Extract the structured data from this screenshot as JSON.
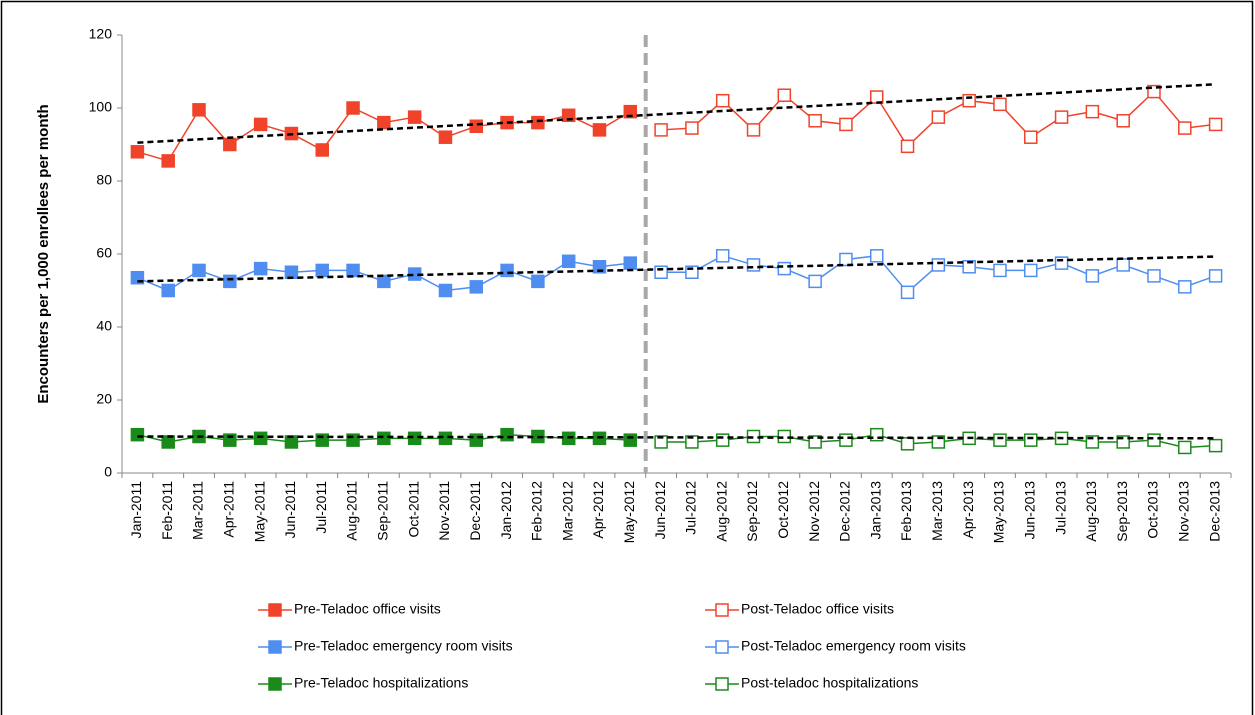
{
  "chart_data": {
    "type": "line",
    "y_label": "Encounters per 1,000 enrollees per month",
    "categories": [
      "Jan-2011",
      "Feb-2011",
      "Mar-2011",
      "Apr-2011",
      "May-2011",
      "Jun-2011",
      "Jul-2011",
      "Aug-2011",
      "Sep-2011",
      "Oct-2011",
      "Nov-2011",
      "Dec-2011",
      "Jan-2012",
      "Feb-2012",
      "Mar-2012",
      "Apr-2012",
      "May-2012",
      "Jun-2012",
      "Jul-2012",
      "Aug-2012",
      "Sep-2012",
      "Oct-2012",
      "Nov-2012",
      "Dec-2012",
      "Jan-2013",
      "Feb-2013",
      "Mar-2013",
      "Apr-2013",
      "May-2013",
      "Jun-2013",
      "Jul-2013",
      "Aug-2013",
      "Sep-2013",
      "Oct-2013",
      "Nov-2013",
      "Dec-2013"
    ],
    "series": [
      {
        "name": "Pre-Teladoc office visits",
        "color": "#f0432a",
        "marker": "filled",
        "values": [
          88,
          85.5,
          99.5,
          90,
          95.5,
          93,
          88.5,
          100,
          96,
          97.5,
          92,
          95,
          96,
          96,
          98,
          94,
          99,
          null,
          null,
          null,
          null,
          null,
          null,
          null,
          null,
          null,
          null,
          null,
          null,
          null,
          null,
          null,
          null,
          null,
          null,
          null
        ]
      },
      {
        "name": "Post-Teladoc office visits",
        "color": "#f0432a",
        "marker": "open",
        "values": [
          null,
          null,
          null,
          null,
          null,
          null,
          null,
          null,
          null,
          null,
          null,
          null,
          null,
          null,
          null,
          null,
          null,
          94,
          94.5,
          102,
          94,
          103.5,
          96.5,
          95.5,
          103,
          89.5,
          97.5,
          102,
          101,
          92,
          97.5,
          99,
          96.5,
          104.5,
          94.5,
          95.5
        ]
      },
      {
        "name": "Pre-Teladoc emergency room visits",
        "color": "#4f8ef0",
        "marker": "filled",
        "values": [
          53.5,
          50,
          55.5,
          52.5,
          56,
          55,
          55.5,
          55.5,
          52.5,
          54.5,
          50,
          51,
          55.5,
          52.5,
          58,
          56.5,
          57.5,
          null,
          null,
          null,
          null,
          null,
          null,
          null,
          null,
          null,
          null,
          null,
          null,
          null,
          null,
          null,
          null,
          null,
          null,
          null
        ]
      },
      {
        "name": "Post-Teladoc emergency room visits",
        "color": "#4f8ef0",
        "marker": "open",
        "values": [
          null,
          null,
          null,
          null,
          null,
          null,
          null,
          null,
          null,
          null,
          null,
          null,
          null,
          null,
          null,
          null,
          null,
          55,
          55,
          59.5,
          57,
          56,
          52.5,
          58.5,
          59.5,
          49.5,
          57,
          56.5,
          55.5,
          55.5,
          57.5,
          54,
          57,
          54,
          51,
          54
        ]
      },
      {
        "name": "Pre-Teladoc hospitalizations",
        "color": "#1a8a1a",
        "marker": "filled",
        "values": [
          10.5,
          8.5,
          10,
          9,
          9.5,
          8.5,
          9,
          9,
          9.5,
          9.5,
          9.5,
          9,
          10.5,
          10,
          9.5,
          9.5,
          9,
          null,
          null,
          null,
          null,
          null,
          null,
          null,
          null,
          null,
          null,
          null,
          null,
          null,
          null,
          null,
          null,
          null,
          null,
          null
        ]
      },
      {
        "name": "Post-teladoc hospitalizations",
        "color": "#1a8a1a",
        "marker": "open",
        "values": [
          null,
          null,
          null,
          null,
          null,
          null,
          null,
          null,
          null,
          null,
          null,
          null,
          null,
          null,
          null,
          null,
          null,
          8.5,
          8.5,
          9,
          10,
          10,
          8.5,
          9,
          10.5,
          8,
          8.5,
          9.5,
          9,
          9,
          9.5,
          8.5,
          8.5,
          9,
          7,
          7.5
        ]
      }
    ],
    "trend_lines": [
      {
        "start": 90.5,
        "end": 106.5,
        "color": "#000"
      },
      {
        "start": 52.5,
        "end": 59.3,
        "color": "#000"
      },
      {
        "start": 10,
        "end": 9.5,
        "color": "#000"
      }
    ],
    "ylim": [
      0,
      120
    ],
    "yticks": [
      0,
      20,
      40,
      60,
      80,
      100,
      120
    ],
    "grid": false
  }
}
